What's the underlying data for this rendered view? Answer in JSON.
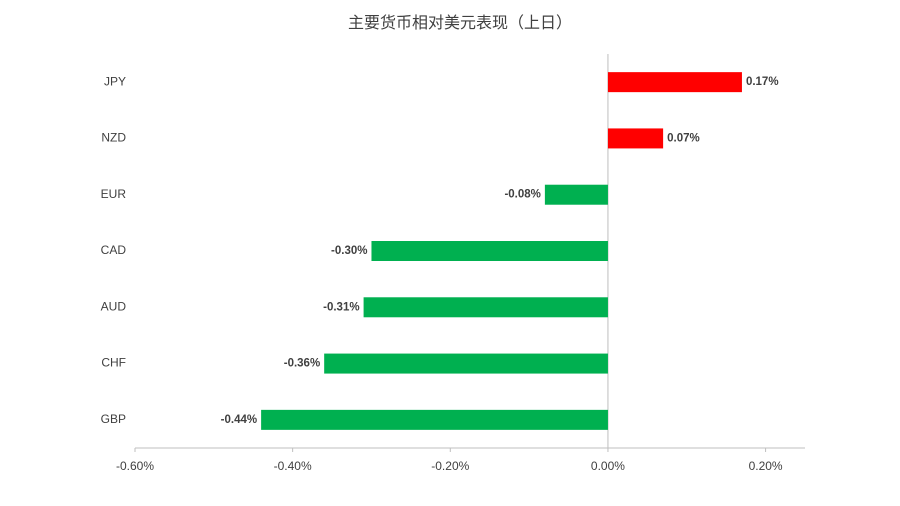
{
  "chart_data": {
    "type": "bar",
    "orientation": "horizontal",
    "title": "主要货币相对美元表现（上日）",
    "categories": [
      "JPY",
      "NZD",
      "EUR",
      "CAD",
      "AUD",
      "CHF",
      "GBP"
    ],
    "values": [
      0.17,
      0.07,
      -0.08,
      -0.3,
      -0.31,
      -0.36,
      -0.44
    ],
    "value_labels": [
      "0.17%",
      "0.07%",
      "-0.08%",
      "-0.30%",
      "-0.31%",
      "-0.36%",
      "-0.44%"
    ],
    "positive_color": "#ff0000",
    "negative_color": "#00b050",
    "xlim": [
      -0.6,
      0.25
    ],
    "xticks": [
      {
        "value": -0.6,
        "label": "-0.60%"
      },
      {
        "value": -0.4,
        "label": "-0.40%"
      },
      {
        "value": -0.2,
        "label": "-0.20%"
      },
      {
        "value": 0,
        "label": "0.00%"
      },
      {
        "value": 0.2,
        "label": "0.20%"
      }
    ],
    "grid": false
  }
}
